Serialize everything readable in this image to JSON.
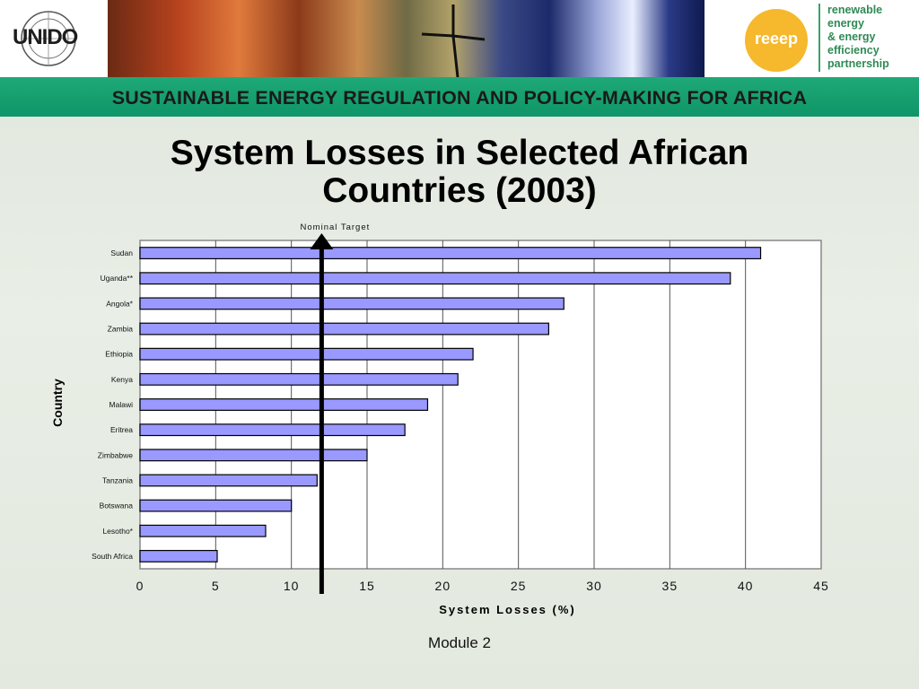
{
  "header": {
    "logo_left_text": "UNIDO",
    "logo_right_word": "reeep",
    "logo_right_lines": [
      "renewable",
      "energy",
      "& energy",
      "efficiency",
      "partnership"
    ],
    "band_title": "SUSTAINABLE ENERGY REGULATION AND POLICY-MAKING FOR AFRICA"
  },
  "slide": {
    "title_line1": "System Losses in Selected African",
    "title_line2": "Countries (2003)",
    "footer": "Module 2"
  },
  "colors": {
    "bar_fill": "#9999ff",
    "band_green": "#13a06f",
    "reeep_orange": "#f6b82c"
  },
  "chart_data": {
    "type": "bar",
    "orientation": "horizontal",
    "categories": [
      "Sudan",
      "Uganda**",
      "Angola*",
      "Zambia",
      "Ethiopia",
      "Kenya",
      "Malawi",
      "Eritrea",
      "Zimbabwe",
      "Tanzania",
      "Botswana",
      "Lesotho*",
      "South Africa"
    ],
    "values": [
      41,
      39,
      28,
      27,
      22,
      21,
      19,
      17.5,
      15,
      11.7,
      10,
      8.3,
      5.1
    ],
    "xlabel": "System Losses (%)",
    "ylabel": "Country",
    "xlim": [
      0,
      45
    ],
    "xticks": [
      0,
      5,
      10,
      15,
      20,
      25,
      30,
      35,
      40,
      45
    ],
    "grid": "vertical",
    "annotation": {
      "label": "Nominal Target",
      "value": 12
    }
  }
}
